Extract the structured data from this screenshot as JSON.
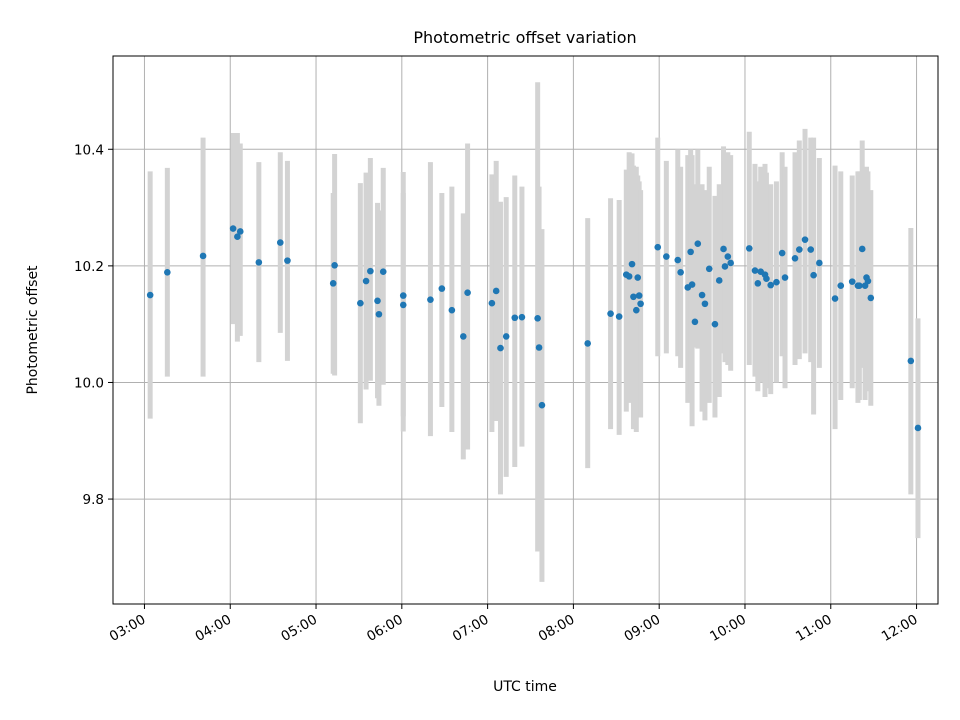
{
  "chart_data": {
    "type": "scatter",
    "title": "Photometric offset variation",
    "xlabel": "UTC time",
    "ylabel": "Photometric offset",
    "x_unit": "UTC",
    "xlim": [
      "02:38",
      "12:15"
    ],
    "ylim": [
      9.62,
      10.56
    ],
    "x_ticks": [
      "03:00",
      "04:00",
      "05:00",
      "06:00",
      "07:00",
      "08:00",
      "09:00",
      "10:00",
      "11:00",
      "12:00"
    ],
    "y_ticks": [
      9.8,
      10.0,
      10.2,
      10.4
    ],
    "y_tick_labels": [
      "9.8",
      "10.0",
      "10.2",
      "10.4"
    ],
    "grid": true,
    "colors": {
      "points": "#1f77b4",
      "errorbars": "#d3d3d3",
      "grid": "#b0b0b0"
    },
    "series": [
      {
        "x": [
          "03:04",
          "03:16",
          "03:41",
          "04:02",
          "04:05",
          "04:07",
          "04:20",
          "04:35",
          "04:40",
          "05:12",
          "05:13",
          "05:31",
          "05:35",
          "05:38",
          "05:43",
          "05:44",
          "05:47",
          "06:01",
          "06:01",
          "06:20",
          "06:28",
          "06:35",
          "06:43",
          "06:46",
          "07:03",
          "07:06",
          "07:09",
          "07:13",
          "07:19",
          "07:24",
          "07:35",
          "07:36",
          "07:38",
          "08:10",
          "08:26",
          "08:32",
          "08:37",
          "08:39",
          "08:41",
          "08:42",
          "08:44",
          "08:45",
          "08:46",
          "08:47",
          "08:59",
          "09:05",
          "09:13",
          "09:15",
          "09:20",
          "09:22",
          "09:23",
          "09:25",
          "09:27",
          "09:30",
          "09:32",
          "09:35",
          "09:39",
          "09:42",
          "09:45",
          "09:46",
          "09:48",
          "09:50",
          "10:03",
          "10:07",
          "10:09",
          "10:11",
          "10:14",
          "10:15",
          "10:18",
          "10:22",
          "10:26",
          "10:28",
          "10:35",
          "10:38",
          "10:42",
          "10:46",
          "10:48",
          "10:52",
          "11:03",
          "11:07",
          "11:15",
          "11:19",
          "11:20",
          "11:22",
          "11:24",
          "11:25",
          "11:26",
          "11:28",
          "11:56",
          "12:01"
        ],
        "y": [
          10.15,
          10.189,
          10.217,
          10.264,
          10.25,
          10.259,
          10.206,
          10.24,
          10.209,
          10.17,
          10.201,
          10.136,
          10.174,
          10.191,
          10.14,
          10.117,
          10.19,
          10.149,
          10.133,
          10.142,
          10.161,
          10.124,
          10.079,
          10.154,
          10.136,
          10.157,
          10.059,
          10.079,
          10.111,
          10.112,
          10.11,
          10.06,
          9.961,
          10.067,
          10.118,
          10.113,
          10.185,
          10.182,
          10.203,
          10.147,
          10.124,
          10.18,
          10.149,
          10.135,
          10.232,
          10.216,
          10.21,
          10.189,
          10.163,
          10.224,
          10.168,
          10.104,
          10.238,
          10.15,
          10.135,
          10.195,
          10.1,
          10.175,
          10.229,
          10.199,
          10.216,
          10.205,
          10.23,
          10.192,
          10.17,
          10.19,
          10.185,
          10.178,
          10.167,
          10.172,
          10.222,
          10.18,
          10.213,
          10.228,
          10.245,
          10.228,
          10.184,
          10.205,
          10.144,
          10.166,
          10.173,
          10.166,
          10.166,
          10.229,
          10.166,
          10.18,
          10.174,
          10.145,
          10.037,
          9.922
        ],
        "err_lo": [
          9.938,
          10.01,
          10.01,
          10.1,
          10.07,
          10.08,
          10.035,
          10.085,
          10.037,
          10.015,
          10.012,
          9.93,
          9.988,
          10.003,
          9.973,
          9.96,
          9.996,
          9.916,
          9.942,
          9.908,
          9.958,
          9.915,
          9.868,
          9.885,
          9.915,
          9.934,
          9.808,
          9.838,
          9.855,
          9.89,
          9.71,
          9.785,
          9.658,
          9.853,
          9.92,
          9.91,
          9.95,
          9.965,
          9.97,
          9.92,
          9.915,
          9.97,
          9.955,
          9.94,
          10.045,
          10.05,
          10.045,
          10.025,
          9.965,
          9.98,
          9.925,
          10.06,
          10.058,
          9.95,
          9.935,
          9.965,
          9.94,
          9.975,
          10.05,
          10.035,
          10.03,
          10.02,
          10.03,
          10.01,
          9.985,
          10.0,
          9.975,
          9.99,
          9.98,
          10.0,
          10.045,
          9.99,
          10.03,
          10.04,
          10.05,
          10.035,
          9.945,
          10.025,
          9.92,
          9.97,
          9.99,
          9.965,
          9.97,
          10.025,
          9.97,
          9.995,
          9.985,
          9.96,
          9.808,
          9.733
        ],
        "err_hi": [
          10.362,
          10.368,
          10.42,
          10.428,
          10.428,
          10.41,
          10.378,
          10.395,
          10.38,
          10.325,
          10.392,
          10.342,
          10.36,
          10.385,
          10.308,
          10.295,
          10.368,
          10.361,
          10.325,
          10.378,
          10.325,
          10.336,
          10.29,
          10.41,
          10.357,
          10.38,
          10.31,
          10.318,
          10.355,
          10.336,
          10.515,
          10.336,
          10.263,
          10.282,
          10.316,
          10.313,
          10.365,
          10.395,
          10.393,
          10.372,
          10.37,
          10.355,
          10.345,
          10.33,
          10.42,
          10.38,
          10.4,
          10.37,
          10.39,
          10.4,
          10.39,
          10.34,
          10.4,
          10.34,
          10.33,
          10.37,
          10.32,
          10.34,
          10.405,
          10.38,
          10.395,
          10.39,
          10.43,
          10.375,
          10.345,
          10.37,
          10.375,
          10.36,
          10.34,
          10.345,
          10.395,
          10.37,
          10.395,
          10.415,
          10.435,
          10.42,
          10.42,
          10.385,
          10.372,
          10.362,
          10.355,
          10.362,
          10.362,
          10.415,
          10.362,
          10.37,
          10.362,
          10.33,
          10.265,
          10.11
        ]
      }
    ]
  }
}
